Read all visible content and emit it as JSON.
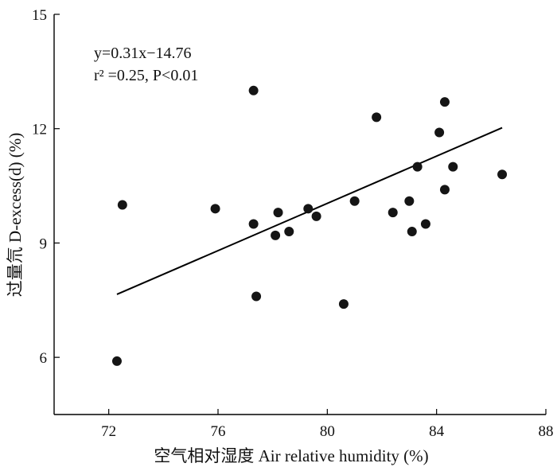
{
  "chart_data": {
    "type": "scatter",
    "xlabel": "空气相对湿度 Air relative humidity (%)",
    "ylabel": "过量氘 D-excess(d) (%)",
    "xlim": [
      70,
      88
    ],
    "ylim": [
      4.5,
      15
    ],
    "xticks": [
      72,
      76,
      80,
      84,
      88
    ],
    "yticks": [
      6,
      9,
      12,
      15
    ],
    "annotations": {
      "equation": "y=0.31x−14.76",
      "stats": "r² =0.25, P<0.01"
    },
    "fit_line": {
      "slope": 0.31,
      "intercept": -14.76,
      "x_range": [
        72.3,
        86.4
      ]
    },
    "points": [
      [
        72.3,
        5.9
      ],
      [
        72.5,
        10.0
      ],
      [
        75.9,
        9.9
      ],
      [
        77.3,
        13.0
      ],
      [
        77.3,
        9.5
      ],
      [
        77.4,
        7.6
      ],
      [
        78.1,
        9.2
      ],
      [
        78.2,
        9.8
      ],
      [
        78.6,
        9.3
      ],
      [
        79.3,
        9.9
      ],
      [
        79.6,
        9.7
      ],
      [
        80.6,
        7.4
      ],
      [
        81.0,
        10.1
      ],
      [
        81.8,
        12.3
      ],
      [
        82.4,
        9.8
      ],
      [
        83.0,
        10.1
      ],
      [
        83.1,
        9.3
      ],
      [
        83.3,
        11.0
      ],
      [
        83.6,
        9.5
      ],
      [
        84.1,
        11.9
      ],
      [
        84.3,
        12.7
      ],
      [
        84.3,
        10.4
      ],
      [
        84.6,
        11.0
      ],
      [
        86.4,
        10.8
      ]
    ]
  }
}
